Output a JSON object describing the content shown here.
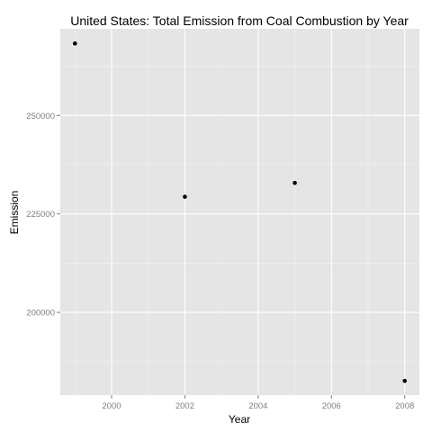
{
  "chart_data": {
    "type": "scatter",
    "title": "United States: Total Emission from Coal Combustion by Year",
    "xlabel": "Year",
    "ylabel": "Emission",
    "x": [
      1999,
      2002,
      2005,
      2008
    ],
    "y": [
      268270,
      229350,
      232870,
      182600
    ],
    "xlim": [
      1998.6,
      2008.4
    ],
    "ylim": [
      179000,
      272000
    ],
    "x_ticks": [
      2000,
      2002,
      2004,
      2006,
      2008
    ],
    "y_ticks": [
      200000,
      225000,
      250000
    ],
    "x_tick_labels": [
      "2000",
      "2002",
      "2004",
      "2006",
      "2008"
    ],
    "y_tick_labels": [
      "200000",
      "225000",
      "250000"
    ],
    "grid": true,
    "colors": {
      "panel": "#e5e5e5",
      "grid_major": "#ffffff",
      "grid_minor": "#f2f2f2",
      "point": "#000000",
      "tick_text": "#7f7f7f"
    }
  }
}
